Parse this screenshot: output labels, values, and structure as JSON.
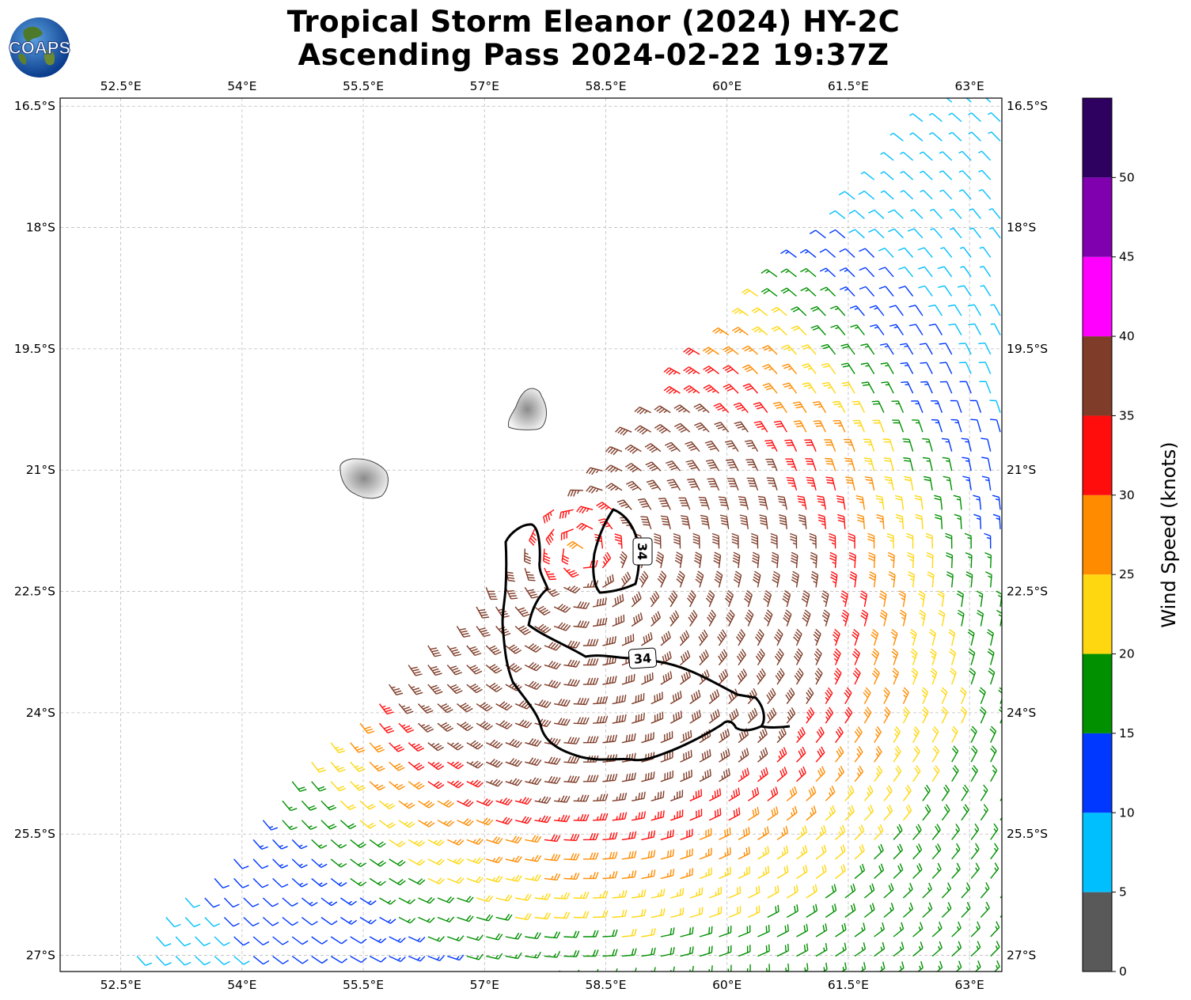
{
  "header": {
    "title_line1": "Tropical Storm Eleanor (2024) HY-2C",
    "title_line2": "Ascending Pass 2024-02-22 19:37Z",
    "logo_text": "COAPS"
  },
  "map": {
    "lon_ticks": [
      "52.5°E",
      "54°E",
      "55.5°E",
      "57°E",
      "58.5°E",
      "60°E",
      "61.5°E",
      "63°E"
    ],
    "lat_ticks": [
      "16.5°S",
      "18°S",
      "19.5°S",
      "21°S",
      "22.5°S",
      "24°S",
      "25.5°S",
      "27°S"
    ],
    "lon_range": [
      51.75,
      63.4
    ],
    "lat_range": [
      -16.4,
      -27.2
    ],
    "contour_label": "34",
    "contour_value_knots": 34,
    "storm_center": {
      "lon": 58.2,
      "lat": -22.0
    },
    "islands": [
      "Réunion",
      "Mauritius"
    ]
  },
  "colorbar": {
    "label": "Wind Speed (knots)",
    "ticks": [
      "0",
      "5",
      "10",
      "15",
      "20",
      "25",
      "30",
      "35",
      "40",
      "45",
      "50"
    ],
    "bins": [
      {
        "from": 0,
        "to": 5,
        "color": "#595959"
      },
      {
        "from": 5,
        "to": 10,
        "color": "#00bfff"
      },
      {
        "from": 10,
        "to": 15,
        "color": "#0038ff"
      },
      {
        "from": 15,
        "to": 20,
        "color": "#009000"
      },
      {
        "from": 20,
        "to": 25,
        "color": "#ffd710"
      },
      {
        "from": 25,
        "to": 30,
        "color": "#ff8c00"
      },
      {
        "from": 30,
        "to": 35,
        "color": "#ff0d0d"
      },
      {
        "from": 35,
        "to": 40,
        "color": "#7f3c28"
      },
      {
        "from": 40,
        "to": 45,
        "color": "#ff00ff"
      },
      {
        "from": 45,
        "to": 50,
        "color": "#8000b0"
      },
      {
        "from": 50,
        "to": 55,
        "color": "#2e0060"
      }
    ]
  }
}
